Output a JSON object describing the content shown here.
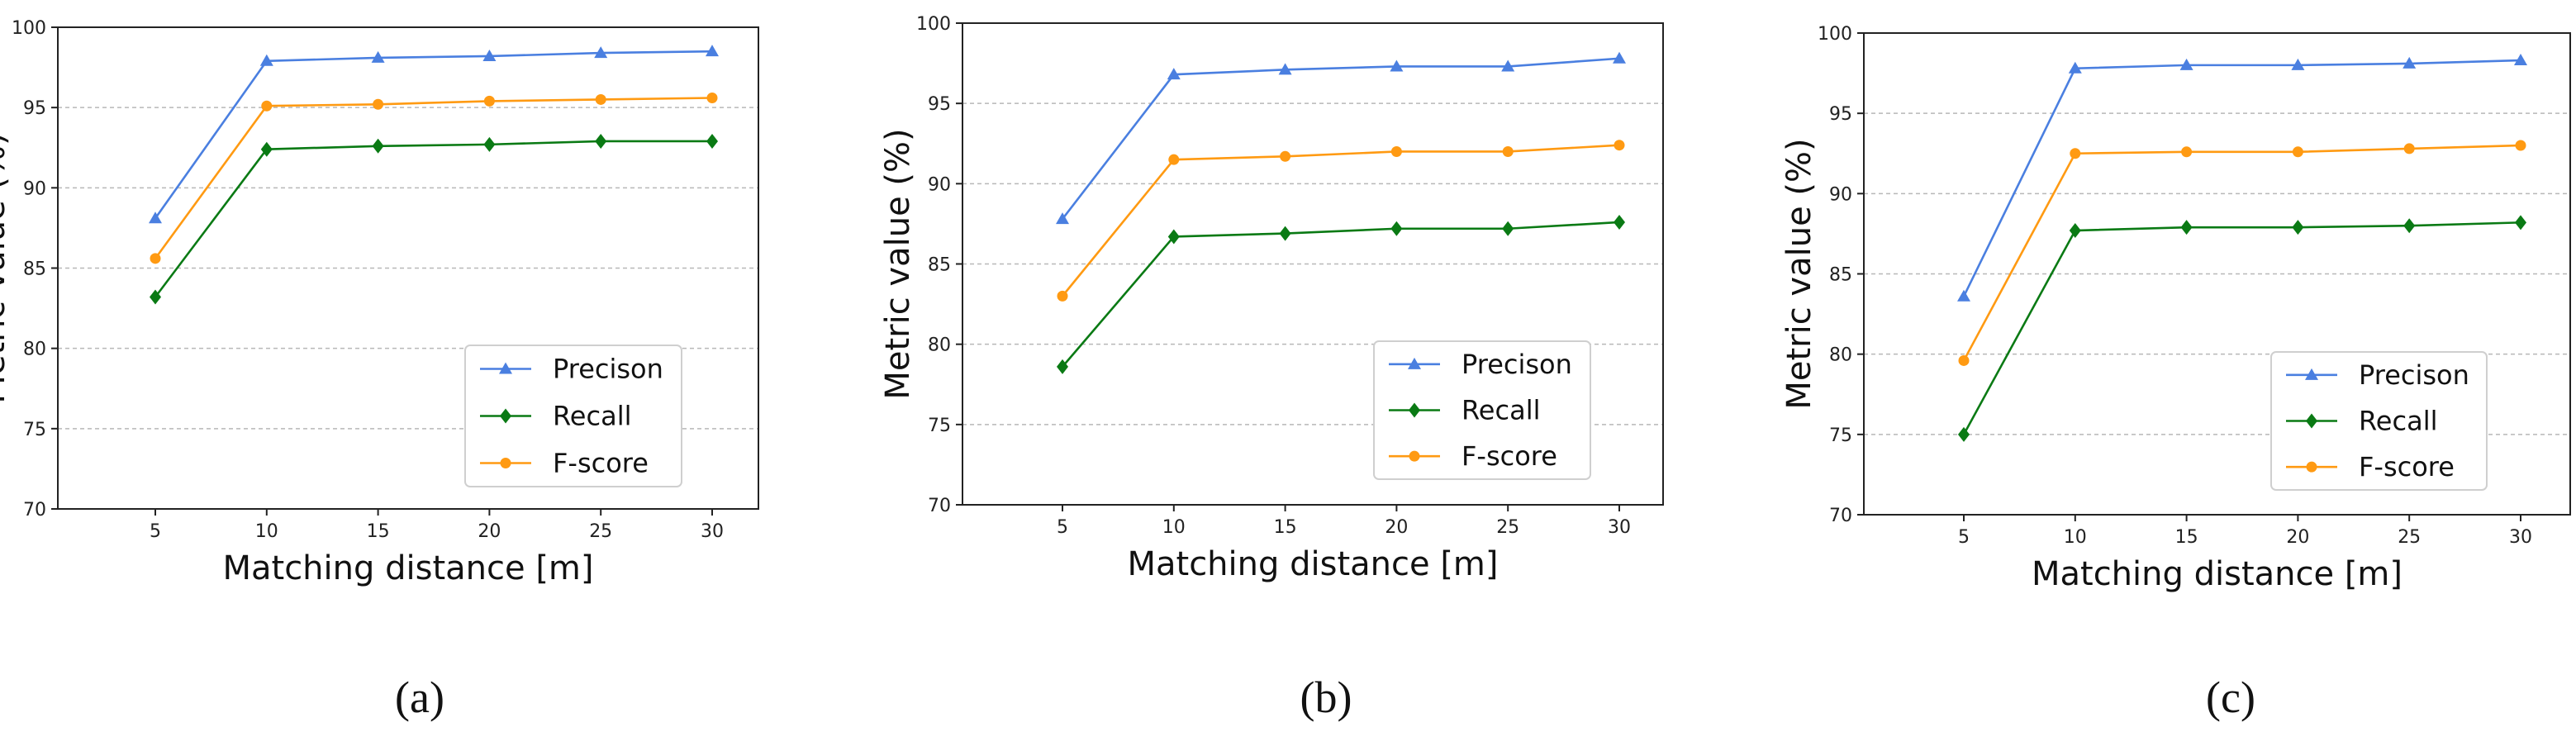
{
  "chart_data": [
    {
      "type": "line",
      "panel_label": "(a)",
      "xlabel": "Matching distance [m]",
      "ylabel": "Metric value (%)",
      "x": [
        5,
        10,
        15,
        20,
        25,
        30
      ],
      "ylim": [
        70,
        100
      ],
      "yticks": [
        70,
        75,
        80,
        85,
        90,
        95,
        100
      ],
      "grid": "y-dashed",
      "legend_position": "lower-right",
      "series": [
        {
          "name": "Precison",
          "color": "#4a7fe0",
          "marker": "triangle",
          "values": [
            88.1,
            97.9,
            98.1,
            98.2,
            98.4,
            98.5
          ]
        },
        {
          "name": "Recall",
          "color": "#0a7a14",
          "marker": "diamond",
          "values": [
            83.2,
            92.4,
            92.6,
            92.7,
            92.9,
            92.9
          ]
        },
        {
          "name": "F-score",
          "color": "#ff9a12",
          "marker": "circle",
          "values": [
            85.6,
            95.1,
            95.2,
            95.4,
            95.5,
            95.6
          ]
        }
      ]
    },
    {
      "type": "line",
      "panel_label": "(b)",
      "xlabel": "Matching distance [m]",
      "ylabel": "Metric value (%)",
      "x": [
        5,
        10,
        15,
        20,
        25,
        30
      ],
      "ylim": [
        70,
        100
      ],
      "yticks": [
        70,
        75,
        80,
        85,
        90,
        95,
        100
      ],
      "grid": "y-dashed",
      "legend_position": "lower-right",
      "series": [
        {
          "name": "Precison",
          "color": "#4a7fe0",
          "marker": "triangle",
          "values": [
            87.8,
            96.8,
            97.1,
            97.3,
            97.3,
            97.8
          ]
        },
        {
          "name": "Recall",
          "color": "#0a7a14",
          "marker": "diamond",
          "values": [
            78.6,
            86.7,
            86.9,
            87.2,
            87.2,
            87.6
          ]
        },
        {
          "name": "F-score",
          "color": "#ff9a12",
          "marker": "circle",
          "values": [
            83.0,
            91.5,
            91.7,
            92.0,
            92.0,
            92.4
          ]
        }
      ]
    },
    {
      "type": "line",
      "panel_label": "(c)",
      "xlabel": "Matching distance [m]",
      "ylabel": "Metric value (%)",
      "x": [
        5,
        10,
        15,
        20,
        25,
        30
      ],
      "ylim": [
        70,
        100
      ],
      "yticks": [
        70,
        75,
        80,
        85,
        90,
        95,
        100
      ],
      "grid": "y-dashed",
      "legend_position": "lower-right",
      "series": [
        {
          "name": "Precison",
          "color": "#4a7fe0",
          "marker": "triangle",
          "values": [
            83.6,
            97.8,
            98.0,
            98.0,
            98.1,
            98.3
          ]
        },
        {
          "name": "Recall",
          "color": "#0a7a14",
          "marker": "diamond",
          "values": [
            75.0,
            87.7,
            87.9,
            87.9,
            88.0,
            88.2
          ]
        },
        {
          "name": "F-score",
          "color": "#ff9a12",
          "marker": "circle",
          "values": [
            79.6,
            92.5,
            92.6,
            92.6,
            92.8,
            93.0
          ]
        }
      ]
    }
  ]
}
